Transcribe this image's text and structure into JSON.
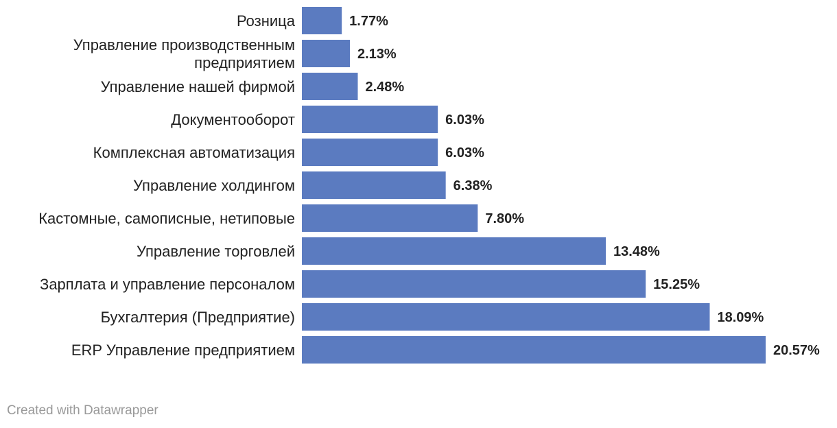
{
  "chart_data": {
    "type": "bar",
    "orientation": "horizontal",
    "categories": [
      "Розница",
      "Управление производственным предприятием",
      "Управление нашей фирмой",
      "Документооборот",
      "Комплексная автоматизация",
      "Управление холдингом",
      "Кастомные, самописные, нетиповые",
      "Управление торговлей",
      "Зарплата и управление персоналом",
      "Бухгалтерия (Предприятие)",
      "ERP Управление предприятием"
    ],
    "values": [
      1.77,
      2.13,
      2.48,
      6.03,
      6.03,
      6.38,
      7.8,
      13.48,
      15.25,
      18.09,
      20.57
    ],
    "value_labels": [
      "1.77%",
      "2.13%",
      "2.48%",
      "6.03%",
      "6.03%",
      "6.38%",
      "7.80%",
      "13.48%",
      "15.25%",
      "18.09%",
      "20.57%"
    ],
    "xlim": [
      0,
      20.57
    ],
    "bar_color": "#5b7bc0",
    "grid": false,
    "title": "",
    "xlabel": "",
    "ylabel": ""
  },
  "footer": {
    "credit": "Created with Datawrapper"
  }
}
